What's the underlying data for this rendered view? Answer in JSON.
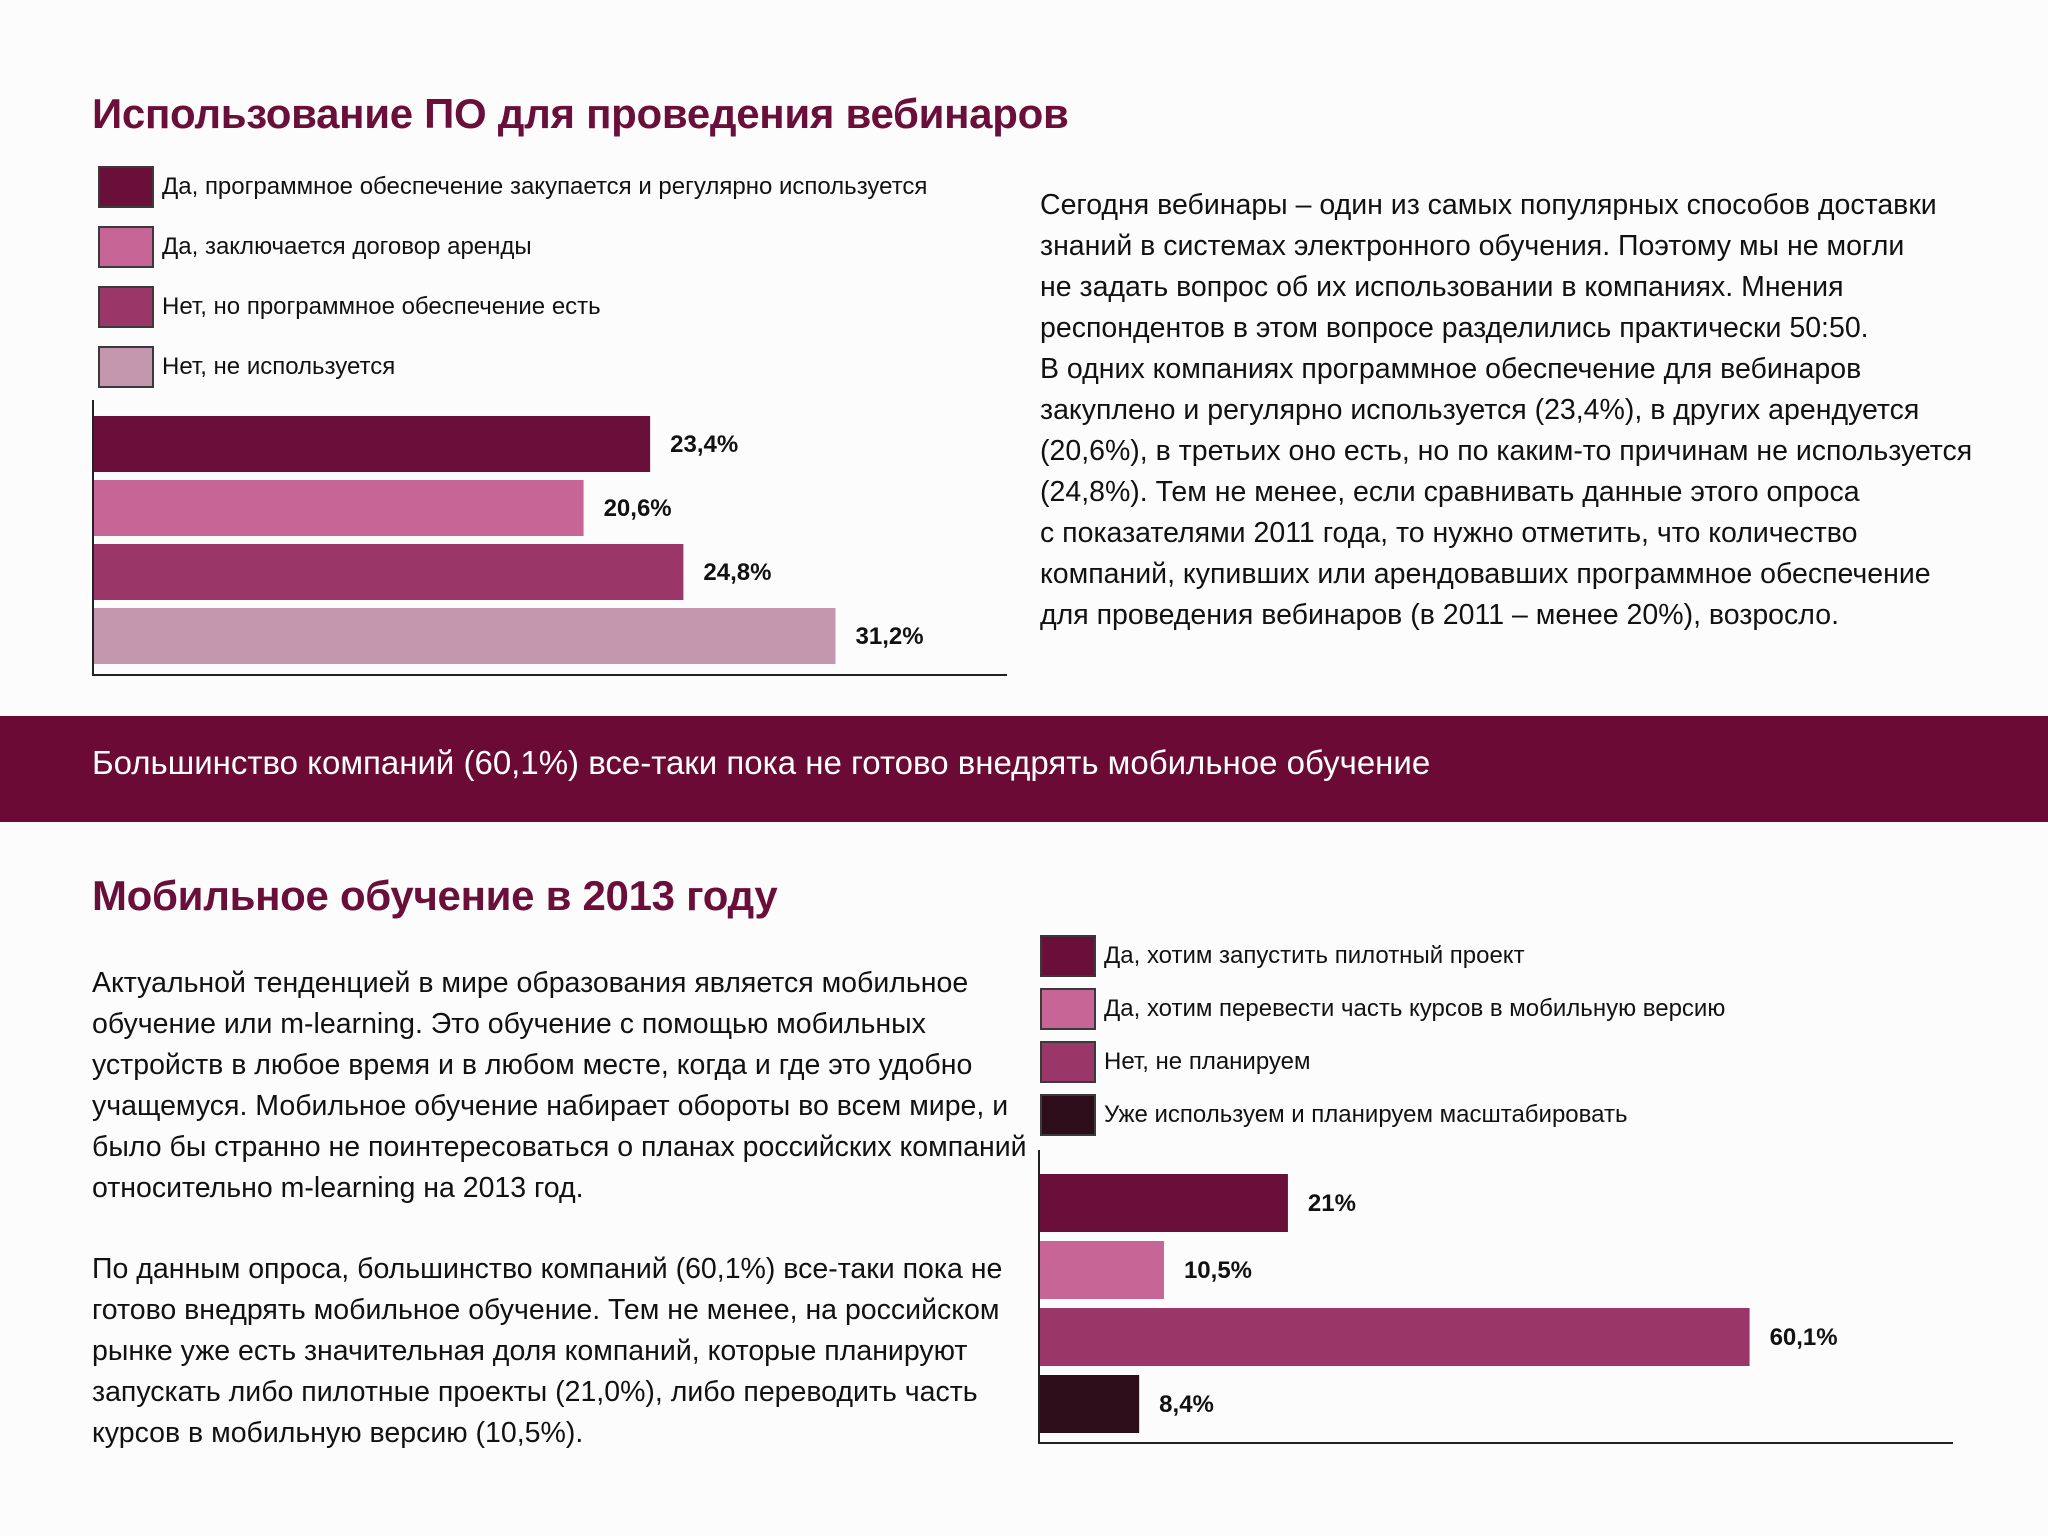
{
  "section1": {
    "title": "Использование ПО для проведения вебинаров",
    "legend": [
      {
        "label": "Да, программное обеспечение закупается и регулярно используется",
        "color": "#6a0f3a"
      },
      {
        "label": "Да, заключается договор аренды",
        "color": "#c86597"
      },
      {
        "label": "Нет, но программное обеспечение есть",
        "color": "#9a3668"
      },
      {
        "label": "Нет, не используется",
        "color": "#c497ae"
      }
    ],
    "paragraph_lines": [
      "Сегодня вебинары – один  из самых популярных способов доставки",
      "знаний в системах электронного обучения. Поэтому мы не могли",
      "не задать вопрос об их использовании в компаниях. Мнения",
      "респондентов в этом вопросе разделились практически 50:50.",
      "В одних компаниях программное обеспечение для вебинаров",
      "закуплено и регулярно используется (23,4%), в других арендуется",
      "(20,6%), в третьих оно есть, но по каким-то причинам не используется",
      "(24,8%). Тем не менее, если сравнивать данные этого опроса",
      "с показателями 2011 года, то нужно отметить, что количество",
      "компаний, купивших или арендовавших программное обеспечение",
      "для проведения вебинаров (в 2011 – менее 20%), возросло."
    ]
  },
  "banner": {
    "text": "Большинство компаний (60,1%) все-таки пока не готово внедрять мобильное обучение"
  },
  "section2": {
    "title": "Мобильное обучение в 2013 году",
    "legend": [
      {
        "label": "Да, хотим запустить пилотный проект",
        "color": "#6a0f3a"
      },
      {
        "label": "Да, хотим перевести часть курсов в мобильную версию",
        "color": "#c86597"
      },
      {
        "label": "Нет, не планируем",
        "color": "#9a3668"
      },
      {
        "label": "Уже используем и планируем масштабировать",
        "color": "#2e0d1b"
      }
    ],
    "paragraph1_lines": [
      "Актуальной тенденцией в мире образования является мобильное",
      "обучение или m-learning.  Это обучение с помощью мобильных",
      "устройств в любое время и в любом месте, когда и где это удобно",
      "учащемуся. Мобильное обучение набирает обороты во всем мире, и",
      "было бы странно не поинтересоваться о планах российских компаний",
      "относительно  m-learning на 2013 год."
    ],
    "paragraph2_lines": [
      "По данным опроса, большинство компаний (60,1%) все-таки пока не",
      "готово внедрять мобильное обучение. Тем не менее, на российском",
      "рынке уже есть значительная доля компаний, которые планируют",
      "запускать либо пилотные проекты (21,0%), либо переводить часть",
      "курсов в мобильную версию (10,5%)."
    ]
  },
  "chart_data": [
    {
      "type": "bar",
      "orientation": "horizontal",
      "title": "Использование ПО для проведения вебинаров",
      "categories": [
        "Да, программное обеспечение закупается и регулярно используется",
        "Да, заключается договор аренды",
        "Нет, но программное обеспечение есть",
        "Нет, не используется"
      ],
      "values": [
        23.4,
        20.6,
        24.8,
        31.2
      ],
      "value_labels": [
        "23,4%",
        "20,6%",
        "24,8%",
        "31,2%"
      ],
      "colors": [
        "#6a0f3a",
        "#c86597",
        "#9a3668",
        "#c497ae"
      ],
      "xlim": [
        0,
        38.5
      ],
      "grid": false,
      "legend_position": "top-left"
    },
    {
      "type": "bar",
      "orientation": "horizontal",
      "title": "Мобильное обучение в 2013 году",
      "categories": [
        "Да, хотим запустить пилотный проект",
        "Да, хотим перевести часть курсов в мобильную версию",
        "Нет, не планируем",
        "Уже используем и планируем масштабировать"
      ],
      "values": [
        21,
        10.5,
        60.1,
        8.4
      ],
      "value_labels": [
        "21%",
        "10,5%",
        "60,1%",
        "8,4%"
      ],
      "colors": [
        "#6a0f3a",
        "#c86597",
        "#9a3668",
        "#2e0d1b"
      ],
      "xlim": [
        0,
        77.5
      ],
      "grid": false,
      "legend_position": "top-left"
    }
  ]
}
